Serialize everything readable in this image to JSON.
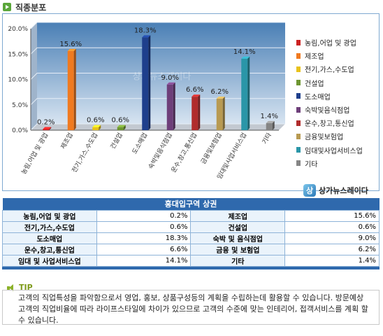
{
  "header": {
    "title": "직종분포"
  },
  "chart_data": {
    "type": "bar",
    "categories": [
      "농림,어업 및 광업",
      "제조업",
      "전기,가스,수도업",
      "건설업",
      "도소매업",
      "숙박및음식점업",
      "운수,창고,통신업",
      "금융및보험업",
      "임대및사업서비스업",
      "기타"
    ],
    "values": [
      0.2,
      15.6,
      0.6,
      0.6,
      18.3,
      9.0,
      6.6,
      6.2,
      14.1,
      1.4
    ],
    "data_labels": [
      "0.2%",
      "15.6%",
      "0.6%",
      "0.6%",
      "18.3%",
      "9.0%",
      "6.6%",
      "6.2%",
      "14.1%",
      "1.4%"
    ],
    "legend": [
      "농림,어업 및 광업",
      "제조업",
      "전기,가스,수도업",
      "건설업",
      "도소매업",
      "숙박및음식점업",
      "운수,창고,통신업",
      "금융및보험업",
      "임대및사업서비스업",
      "기타"
    ],
    "colors": [
      "#cc2222",
      "#f07a20",
      "#e8c21c",
      "#6e9632",
      "#1e3f8c",
      "#6e3f7a",
      "#b02c2c",
      "#b89a52",
      "#2a96a8",
      "#858585"
    ],
    "ylim": [
      0,
      20
    ],
    "yticks": [
      "0.0%",
      "5.0%",
      "10.0%",
      "15.0%",
      "20.0%"
    ],
    "grid": true,
    "legend_position": "right",
    "watermark": "상가뉴스레이다"
  },
  "brand": {
    "logo": "상",
    "name": "상가뉴스레이다"
  },
  "table": {
    "title": "홍대입구역 상권",
    "rows": [
      [
        {
          "label": "농림,어업 및 광업",
          "value": "0.2%"
        },
        {
          "label": "제조업",
          "value": "15.6%"
        }
      ],
      [
        {
          "label": "전기,가스,수도업",
          "value": "0.6%"
        },
        {
          "label": "건설업",
          "value": "0.6%"
        }
      ],
      [
        {
          "label": "도소매업",
          "value": "18.3%"
        },
        {
          "label": "숙박 및 음식점업",
          "value": "9.0%"
        }
      ],
      [
        {
          "label": "운수,창고,통신업",
          "value": "6.6%"
        },
        {
          "label": "금융 및 보험업",
          "value": "6.2%"
        }
      ],
      [
        {
          "label": "임대 및 사업서비스업",
          "value": "14.1%"
        },
        {
          "label": "기타",
          "value": "1.4%"
        }
      ]
    ]
  },
  "tip": {
    "title": "TIP",
    "text": "고객의 직업특성을 파악함으로서 영업, 홍보, 상품구성등의 계획을 수립하는데 활용할 수 있습니다. 방문예상 고객의 직업비율에 따라 라이프스타일에 차이가 있으므로 고객의 수준에 맞는 인테리어, 접객서비스를 계획 할 수 있습니다."
  }
}
